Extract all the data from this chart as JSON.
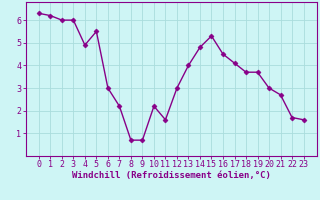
{
  "x": [
    0,
    1,
    2,
    3,
    4,
    5,
    6,
    7,
    8,
    9,
    10,
    11,
    12,
    13,
    14,
    15,
    16,
    17,
    18,
    19,
    20,
    21,
    22,
    23
  ],
  "y": [
    6.3,
    6.2,
    6.0,
    6.0,
    4.9,
    5.5,
    3.0,
    2.2,
    0.7,
    0.7,
    2.2,
    1.6,
    3.0,
    4.0,
    4.8,
    5.3,
    4.5,
    4.1,
    3.7,
    3.7,
    3.0,
    2.7,
    1.7,
    1.6
  ],
  "line_color": "#880088",
  "marker": "D",
  "markersize": 2.5,
  "linewidth": 1.0,
  "bg_color": "#cef5f5",
  "grid_color": "#aadddd",
  "xlabel": "Windchill (Refroidissement éolien,°C)",
  "xlabel_color": "#880088",
  "xlabel_fontsize": 6.5,
  "tick_color": "#880088",
  "tick_fontsize": 6.0,
  "ylim": [
    0,
    6.8
  ],
  "yticks": [
    1,
    2,
    3,
    4,
    5,
    6
  ],
  "xticks": [
    0,
    1,
    2,
    3,
    4,
    5,
    6,
    7,
    8,
    9,
    10,
    11,
    12,
    13,
    14,
    15,
    16,
    17,
    18,
    19,
    20,
    21,
    22,
    23
  ],
  "spine_color": "#880088"
}
